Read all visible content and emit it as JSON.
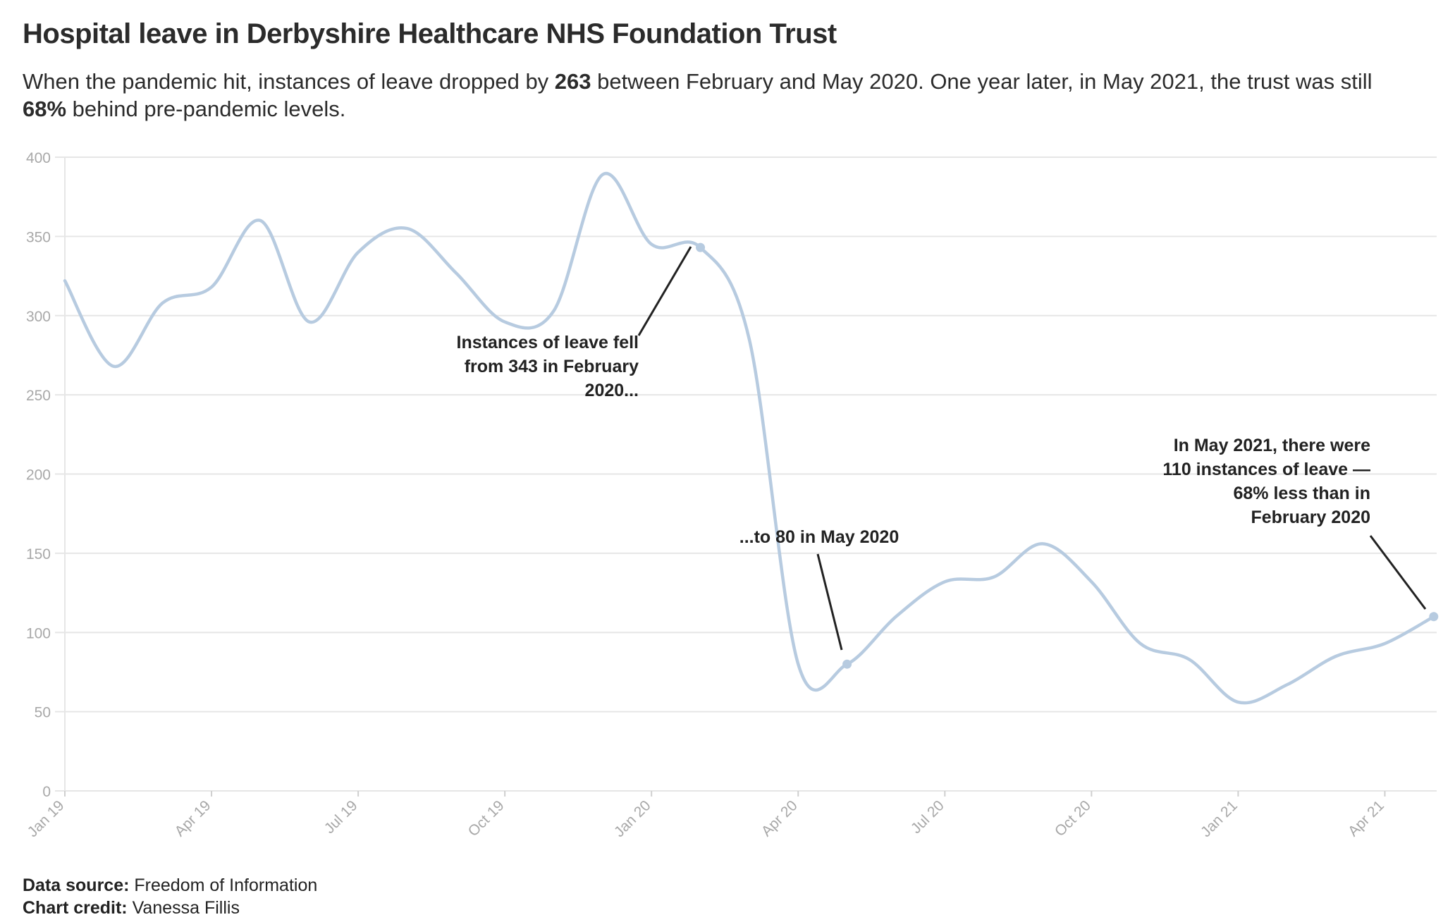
{
  "title": "Hospital leave in Derbyshire Healthcare NHS Foundation Trust",
  "subtitle": {
    "part1": "When the pandemic hit, instances of leave dropped by ",
    "drop": "263",
    "part2": " between February and May 2020. One year later, in May 2021, the trust was still ",
    "pct": "68%",
    "part3": " behind pre-pandemic levels."
  },
  "footer": {
    "source_label": "Data source:",
    "source_value": "Freedom of Information",
    "credit_label": "Chart credit:",
    "credit_value": "Vanessa Fillis"
  },
  "colors": {
    "line": "#b7cbe0",
    "grid": "#e6e6e6",
    "axis_text": "#a8a8a8",
    "annotation": "#222222"
  },
  "chart_data": {
    "type": "line",
    "title": "Hospital leave in Derbyshire Healthcare NHS Foundation Trust",
    "xlabel": "",
    "ylabel": "",
    "ylim": [
      0,
      400
    ],
    "yticks": [
      0,
      50,
      100,
      150,
      200,
      250,
      300,
      350,
      400
    ],
    "grid": true,
    "xticks": [
      "Jan 19",
      "Apr 19",
      "Jul 19",
      "Oct 19",
      "Jan 20",
      "Apr 20",
      "Jul 20",
      "Oct 20",
      "Jan 21",
      "Apr 21"
    ],
    "x": [
      "Jan 19",
      "Feb 19",
      "Mar 19",
      "Apr 19",
      "May 19",
      "Jun 19",
      "Jul 19",
      "Aug 19",
      "Sep 19",
      "Oct 19",
      "Nov 19",
      "Dec 19",
      "Jan 20",
      "Feb 20",
      "Mar 20",
      "Apr 20",
      "May 20",
      "Jun 20",
      "Jul 20",
      "Aug 20",
      "Sep 20",
      "Oct 20",
      "Nov 20",
      "Dec 20",
      "Jan 21",
      "Feb 21",
      "Mar 21",
      "Apr 21",
      "May 21"
    ],
    "series": [
      {
        "values": [
          322,
          268,
          308,
          318,
          360,
          296,
          340,
          355,
          327,
          296,
          303,
          389,
          345,
          343,
          285,
          80,
          80,
          110,
          132,
          135,
          156,
          132,
          93,
          83,
          56,
          67,
          85,
          93,
          110
        ]
      }
    ],
    "highlight_points": [
      "Feb 20",
      "May 20",
      "May 21"
    ],
    "annotations": [
      {
        "target": "Feb 20",
        "lines": [
          "Instances of leave fell",
          "from 343 in February",
          "2020..."
        ]
      },
      {
        "target": "May 20",
        "lines": [
          "...to 80 in May 2020"
        ]
      },
      {
        "target": "May 21",
        "lines": [
          "In May 2021, there were",
          "110 instances of leave —",
          "68% less than in",
          "February 2020"
        ]
      }
    ]
  }
}
